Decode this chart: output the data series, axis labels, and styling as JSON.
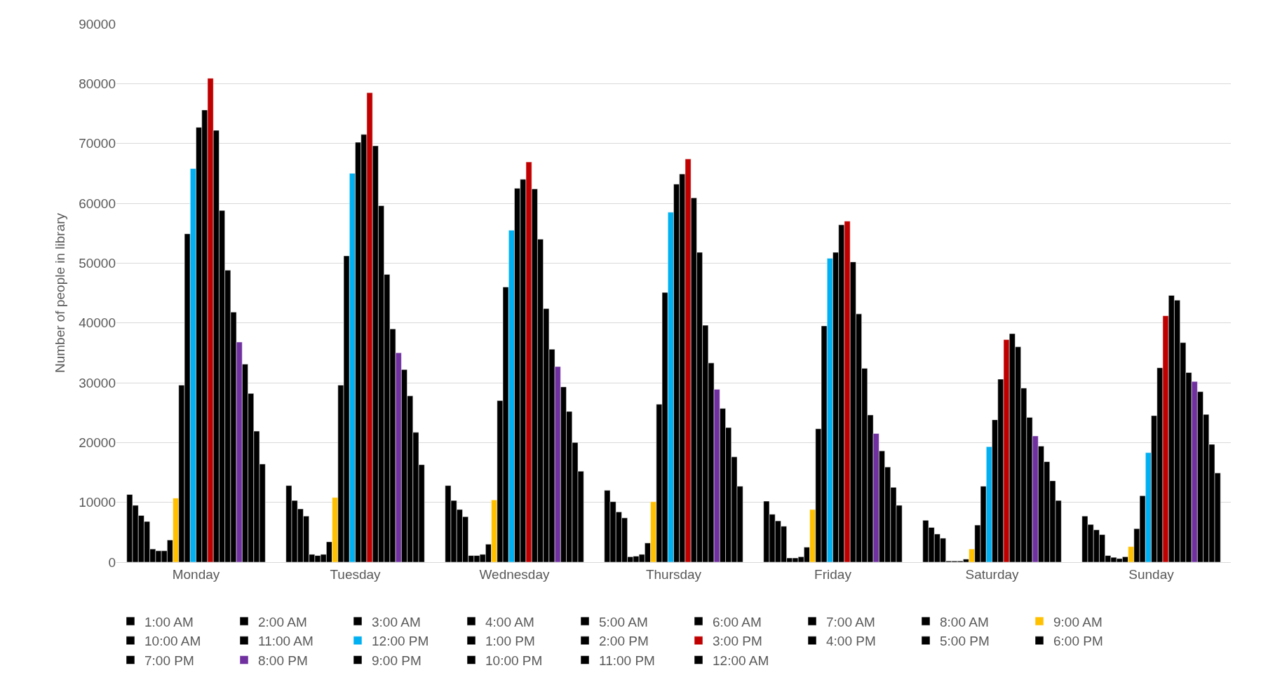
{
  "chart_data": {
    "type": "bar",
    "ylabel": "Number of people in library",
    "categories": [
      "Monday",
      "Tuesday",
      "Wednesday",
      "Thursday",
      "Friday",
      "Saturday",
      "Sunday"
    ],
    "ylim": [
      0,
      90000
    ],
    "yticks": [
      0,
      10000,
      20000,
      30000,
      40000,
      50000,
      60000,
      70000,
      80000,
      90000
    ],
    "grid": "y",
    "legend": "bottom",
    "series": [
      {
        "name": "1:00 AM",
        "color": "#000000",
        "values": [
          11300,
          12800,
          12800,
          12000,
          10200,
          7000,
          7700
        ]
      },
      {
        "name": "2:00 AM",
        "color": "#000000",
        "values": [
          9500,
          10300,
          10300,
          10100,
          8000,
          5800,
          6300
        ]
      },
      {
        "name": "3:00 AM",
        "color": "#000000",
        "values": [
          7800,
          8900,
          8800,
          8400,
          6900,
          4700,
          5400
        ]
      },
      {
        "name": "4:00 AM",
        "color": "#000000",
        "values": [
          6800,
          7700,
          7600,
          7400,
          6000,
          4000,
          4600
        ]
      },
      {
        "name": "5:00 AM",
        "color": "#000000",
        "values": [
          2200,
          1300,
          1100,
          900,
          700,
          200,
          1100
        ]
      },
      {
        "name": "6:00 AM",
        "color": "#000000",
        "values": [
          1900,
          1100,
          1100,
          1000,
          700,
          200,
          800
        ]
      },
      {
        "name": "7:00 AM",
        "color": "#000000",
        "values": [
          1900,
          1300,
          1300,
          1300,
          900,
          200,
          600
        ]
      },
      {
        "name": "8:00 AM",
        "color": "#000000",
        "values": [
          3700,
          3400,
          3000,
          3200,
          2500,
          500,
          900
        ]
      },
      {
        "name": "9:00 AM",
        "color": "#ffc000",
        "values": [
          10700,
          10800,
          10400,
          10100,
          8800,
          2200,
          2600
        ]
      },
      {
        "name": "10:00 AM",
        "color": "#000000",
        "values": [
          29600,
          29600,
          27000,
          26400,
          22300,
          6200,
          5600
        ]
      },
      {
        "name": "11:00 AM",
        "color": "#000000",
        "values": [
          54900,
          51200,
          46000,
          45100,
          39500,
          12700,
          11100
        ]
      },
      {
        "name": "12:00 PM",
        "color": "#00b0f0",
        "values": [
          65800,
          65000,
          55500,
          58500,
          50800,
          19300,
          18300
        ]
      },
      {
        "name": "1:00 PM",
        "color": "#000000",
        "values": [
          72700,
          70200,
          62500,
          63200,
          51800,
          23800,
          24500
        ]
      },
      {
        "name": "2:00 PM",
        "color": "#000000",
        "values": [
          75600,
          71500,
          64000,
          64900,
          56400,
          30600,
          32500
        ]
      },
      {
        "name": "3:00 PM",
        "color": "#c00000",
        "values": [
          80900,
          78500,
          66900,
          67400,
          57000,
          37200,
          41200
        ]
      },
      {
        "name": "4:00 PM",
        "color": "#000000",
        "values": [
          72200,
          69600,
          62400,
          60900,
          50200,
          38200,
          44600
        ]
      },
      {
        "name": "5:00 PM",
        "color": "#000000",
        "values": [
          58800,
          59600,
          54000,
          51800,
          41500,
          36000,
          43800
        ]
      },
      {
        "name": "6:00 PM",
        "color": "#000000",
        "values": [
          48800,
          48100,
          42400,
          39600,
          32400,
          29100,
          36700
        ]
      },
      {
        "name": "7:00 PM",
        "color": "#000000",
        "values": [
          41800,
          39000,
          35600,
          33300,
          24600,
          24200,
          31700
        ]
      },
      {
        "name": "8:00 PM",
        "color": "#7030a0",
        "values": [
          36800,
          35000,
          32700,
          28900,
          21500,
          21100,
          30200
        ]
      },
      {
        "name": "9:00 PM",
        "color": "#000000",
        "values": [
          33100,
          32200,
          29300,
          25700,
          18600,
          19400,
          28500
        ]
      },
      {
        "name": "10:00 PM",
        "color": "#000000",
        "values": [
          28200,
          27800,
          25200,
          22500,
          15900,
          16800,
          24700
        ]
      },
      {
        "name": "11:00 PM",
        "color": "#000000",
        "values": [
          21900,
          21700,
          20000,
          17600,
          12500,
          13600,
          19700
        ]
      },
      {
        "name": "12:00 AM",
        "color": "#000000",
        "values": [
          16400,
          16300,
          15200,
          12700,
          9500,
          10300,
          14900
        ]
      }
    ]
  }
}
